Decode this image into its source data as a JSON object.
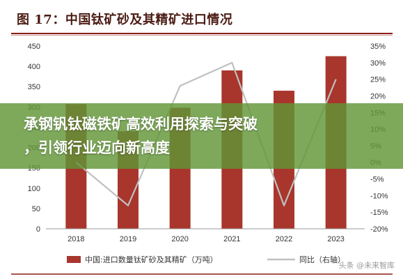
{
  "header": {
    "figure_title": "图 17：中国钛矿砂及其精矿进口情况"
  },
  "overlay": {
    "line1": "承钢钒钛磁铁矿高效利用探索与突破",
    "line2": "，引领行业迈向新高度"
  },
  "watermark": {
    "text": "头条 @未来智库"
  },
  "colors": {
    "bar": "#a8362c",
    "line": "#c0c0c0",
    "title": "#4b1c14",
    "rule": "#8a1f14",
    "overlay": "#629637"
  },
  "chart_data": {
    "type": "bar",
    "categories": [
      "2018",
      "2019",
      "2020",
      "2021",
      "2022",
      "2023"
    ],
    "series": [
      {
        "name": "中国:进口数量钛矿砂及其精矿（万吨）",
        "type": "bar",
        "axis": "left",
        "values": [
          307,
          240,
          298,
          390,
          340,
          425
        ]
      },
      {
        "name": "同比（右轴）",
        "type": "line",
        "axis": "right",
        "values": [
          0,
          -13,
          23,
          30,
          -13,
          25
        ]
      }
    ],
    "left_axis": {
      "ylim": [
        0,
        450
      ],
      "ticks": [
        "0",
        "50",
        "100",
        "150",
        "200",
        "250",
        "300",
        "350",
        "400",
        "450"
      ]
    },
    "right_axis": {
      "ylim": [
        -20,
        35
      ],
      "ticks": [
        "-20%",
        "-15%",
        "-10%",
        "-5%",
        "0%",
        "5%",
        "10%",
        "15%",
        "20%",
        "25%",
        "30%",
        "35%"
      ]
    },
    "legend_position": "bottom",
    "grid": false
  }
}
